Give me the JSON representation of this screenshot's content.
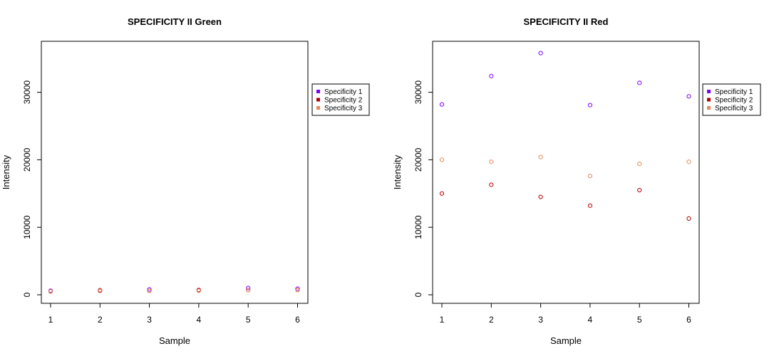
{
  "chart_data": [
    {
      "type": "scatter",
      "title": "SPECIFICITY II Green",
      "xlabel": "Sample",
      "ylabel": "Intensity",
      "x": [
        1,
        2,
        3,
        4,
        5,
        6
      ],
      "xlim": [
        1,
        6
      ],
      "ylim": [
        0,
        35000
      ],
      "yticks": [
        0,
        10000,
        20000,
        30000
      ],
      "legend_placement": "right",
      "series": [
        {
          "name": "Specificity 1",
          "color": "#7B00FF",
          "values": [
            600,
            700,
            800,
            700,
            1000,
            900
          ]
        },
        {
          "name": "Specificity 2",
          "color": "#B40000",
          "values": [
            500,
            600,
            600,
            700,
            700,
            700
          ]
        },
        {
          "name": "Specificity 3",
          "color": "#E58A5A",
          "values": [
            500,
            700,
            600,
            600,
            700,
            700
          ]
        }
      ]
    },
    {
      "type": "scatter",
      "title": "SPECIFICITY II Red",
      "xlabel": "Sample",
      "ylabel": "Intensity",
      "x": [
        1,
        2,
        3,
        4,
        5,
        6
      ],
      "xlim": [
        1,
        6
      ],
      "ylim": [
        0,
        35000
      ],
      "yticks": [
        0,
        10000,
        20000,
        30000
      ],
      "legend_placement": "right",
      "series": [
        {
          "name": "Specificity 1",
          "color": "#7B00FF",
          "values": [
            28200,
            32400,
            35800,
            28100,
            31400,
            29400
          ]
        },
        {
          "name": "Specificity 2",
          "color": "#B40000",
          "values": [
            15000,
            16300,
            14500,
            13200,
            15500,
            11300
          ]
        },
        {
          "name": "Specificity 3",
          "color": "#E58A5A",
          "values": [
            20000,
            19700,
            20400,
            17600,
            19400,
            19700
          ]
        }
      ]
    }
  ]
}
